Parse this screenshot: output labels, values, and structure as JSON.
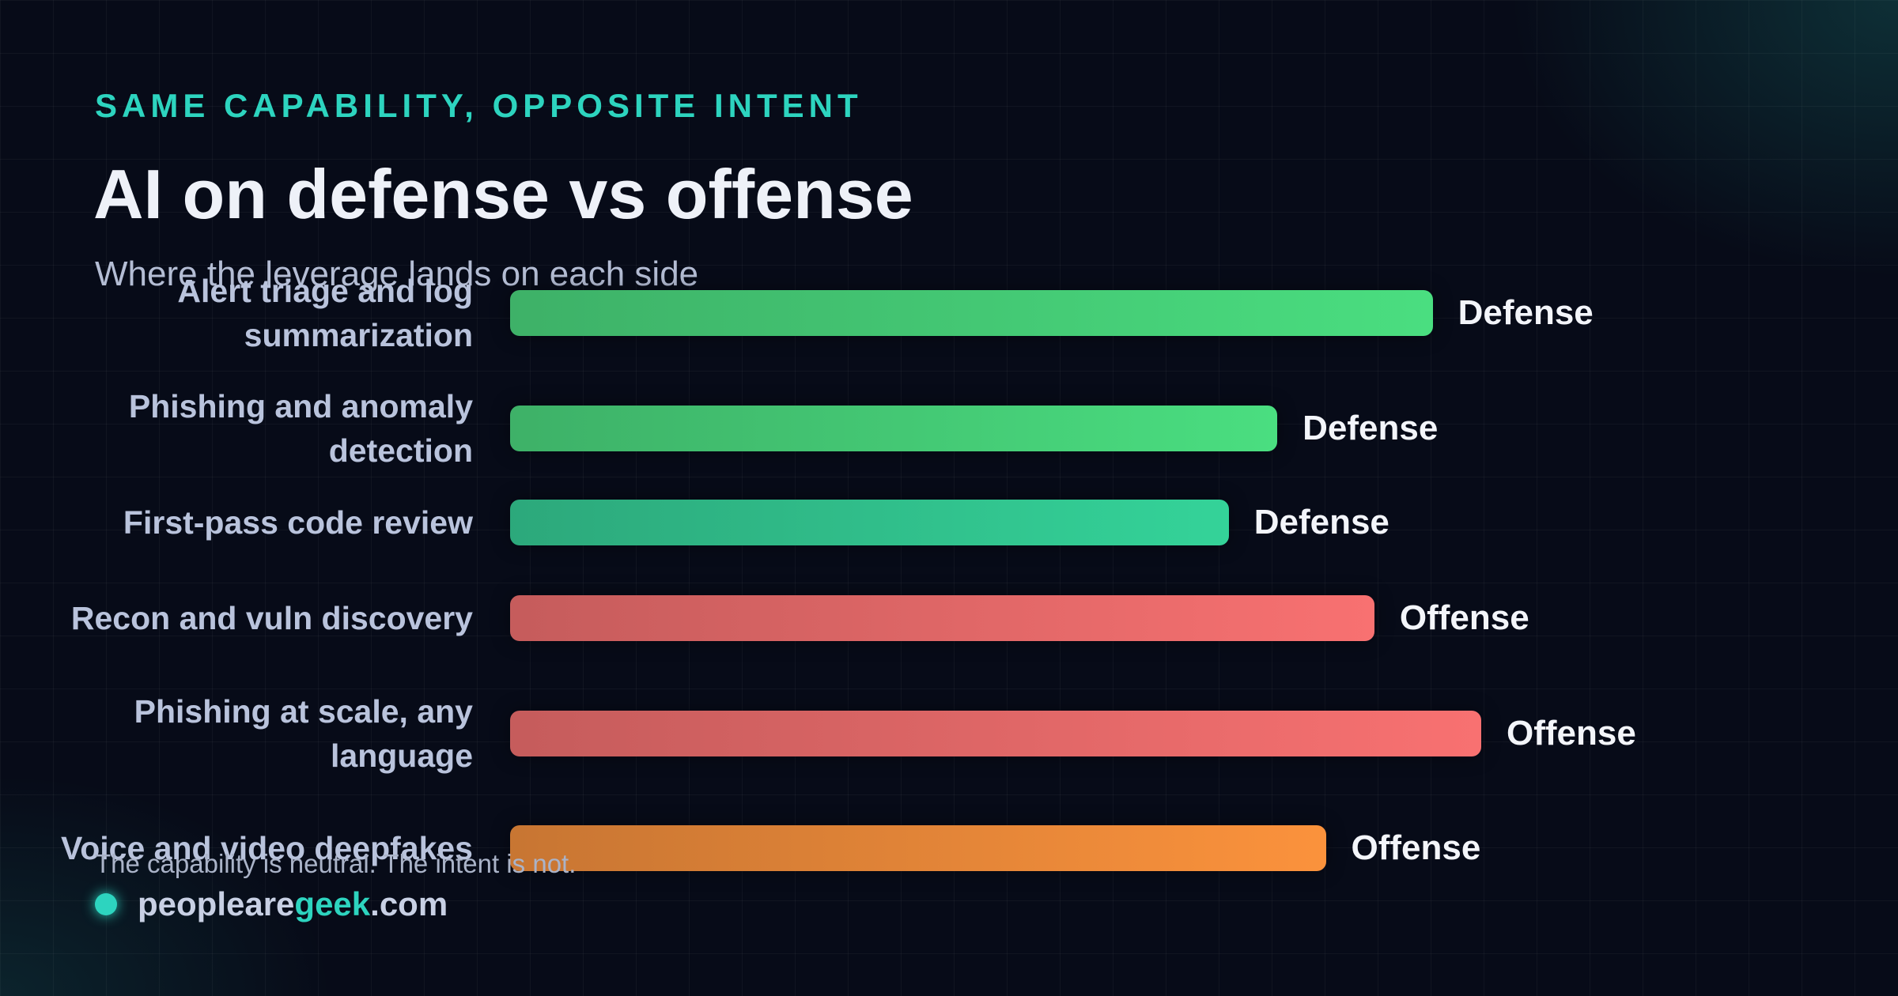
{
  "header": {
    "eyebrow": "SAME CAPABILITY, OPPOSITE INTENT",
    "title": "AI on defense vs offense",
    "subtitle": "Where the leverage lands on each side"
  },
  "chart_data": {
    "type": "bar",
    "orientation": "horizontal",
    "categories": [
      "Alert triage and log summarization",
      "Phishing and anomaly detection",
      "First-pass code review",
      "Recon and vuln discovery",
      "Phishing at scale, any language",
      "Voice and video deepfakes"
    ],
    "values": [
      95,
      79,
      74,
      89,
      100,
      84
    ],
    "sides": [
      "Defense",
      "Defense",
      "Defense",
      "Offense",
      "Offense",
      "Offense"
    ],
    "colors": [
      "#4ade80",
      "#4ade80",
      "#34d399",
      "#f87171",
      "#f87171",
      "#fb923c"
    ],
    "xlim": [
      0,
      100
    ]
  },
  "footer": {
    "note": "The capability is neutral. The intent is not.",
    "brand": [
      "peopleare",
      "geek",
      ".com"
    ]
  }
}
